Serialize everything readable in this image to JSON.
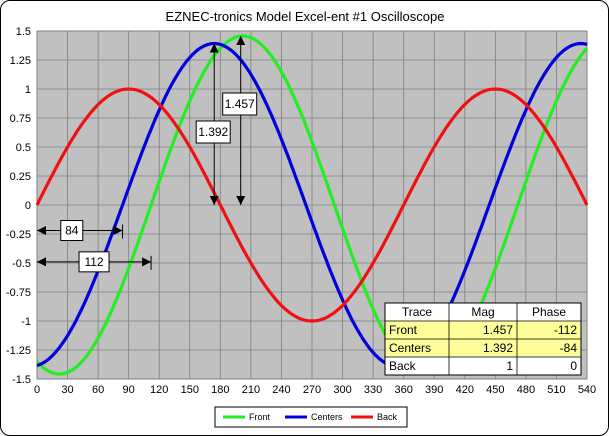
{
  "chart_data": {
    "type": "line",
    "title": "EZNEC-tronics  Model Excel-ent #1 Oscilloscope",
    "xlim": [
      0,
      540
    ],
    "ylim": [
      -1.5,
      1.5
    ],
    "x_ticks": [
      "0",
      "30",
      "60",
      "90",
      "120",
      "150",
      "180",
      "210",
      "240",
      "270",
      "300",
      "330",
      "360",
      "390",
      "420",
      "450",
      "480",
      "510",
      "540"
    ],
    "y_ticks": [
      "1.5",
      "1.25",
      "1",
      "0.75",
      "0.5",
      "0.25",
      "0",
      "-0.25",
      "-0.5",
      "-0.75",
      "-1",
      "-1.25",
      "-1.5"
    ],
    "grid": true,
    "legend_position": "bottom",
    "series": [
      {
        "name": "Front",
        "color": "#22ee22",
        "magnitude": 1.457,
        "phase_deg": -112
      },
      {
        "name": "Centers",
        "color": "#0000dd",
        "magnitude": 1.392,
        "phase_deg": -84
      },
      {
        "name": "Back",
        "color": "#ee1111",
        "magnitude": 1,
        "phase_deg": 0
      }
    ],
    "annotations": [
      {
        "text": "1.457",
        "x": 200,
        "y_from": 0,
        "y_to": 1.457
      },
      {
        "text": "1.392",
        "x": 174,
        "y_from": 0,
        "y_to": 1.392
      },
      {
        "text": "84",
        "y": -0.22,
        "x_from": 0,
        "x_to": 84
      },
      {
        "text": "112",
        "y": -0.49,
        "x_from": 0,
        "x_to": 112
      }
    ],
    "table": {
      "headers": [
        "Trace",
        "Mag",
        "Phase"
      ],
      "rows": [
        [
          "Front",
          "1.457",
          "-112"
        ],
        [
          "Centers",
          "1.392",
          "-84"
        ],
        [
          "Back",
          "1",
          "0"
        ]
      ]
    }
  }
}
